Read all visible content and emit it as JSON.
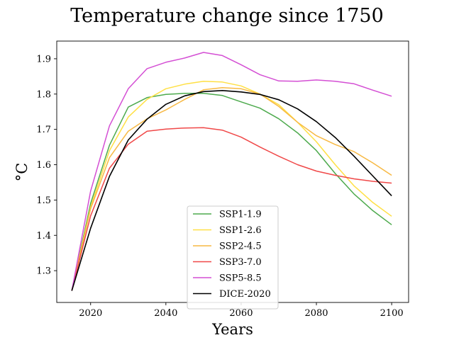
{
  "chart_data": {
    "type": "line",
    "title": "Temperature change since 1750",
    "xlabel": "Years",
    "ylabel": "°C",
    "xlim": [
      2011,
      2104.5
    ],
    "ylim": [
      1.21,
      1.95
    ],
    "x_ticks": [
      2020,
      2040,
      2060,
      2080,
      2100
    ],
    "y_ticks": [
      1.3,
      1.4,
      1.5,
      1.6,
      1.7,
      1.8,
      1.9
    ],
    "grid": false,
    "legend_position": "lower-center",
    "x": [
      2015,
      2020,
      2025,
      2030,
      2035,
      2040,
      2045,
      2050,
      2055,
      2060,
      2065,
      2070,
      2075,
      2080,
      2085,
      2090,
      2095,
      2100
    ],
    "series": [
      {
        "name": "SSP1-1.9",
        "color": "#4daa4d",
        "values": [
          1.243,
          1.49,
          1.655,
          1.763,
          1.79,
          1.799,
          1.802,
          1.802,
          1.796,
          1.778,
          1.76,
          1.73,
          1.69,
          1.64,
          1.575,
          1.517,
          1.47,
          1.43
        ]
      },
      {
        "name": "SSP1-2.6",
        "color": "#ffe045",
        "values": [
          1.243,
          1.48,
          1.64,
          1.735,
          1.785,
          1.815,
          1.828,
          1.836,
          1.834,
          1.823,
          1.8,
          1.77,
          1.72,
          1.665,
          1.6,
          1.54,
          1.493,
          1.454
        ]
      },
      {
        "name": "SSP2-4.5",
        "color": "#f7b944",
        "values": [
          1.243,
          1.475,
          1.62,
          1.695,
          1.73,
          1.755,
          1.785,
          1.812,
          1.818,
          1.815,
          1.8,
          1.765,
          1.72,
          1.682,
          1.657,
          1.637,
          1.605,
          1.57
        ]
      },
      {
        "name": "SSP3-7.0",
        "color": "#f04848",
        "values": [
          1.243,
          1.455,
          1.59,
          1.658,
          1.695,
          1.701,
          1.704,
          1.705,
          1.698,
          1.678,
          1.65,
          1.624,
          1.6,
          1.582,
          1.57,
          1.56,
          1.553,
          1.548
        ]
      },
      {
        "name": "SSP5-8.5",
        "color": "#d44fd4",
        "values": [
          1.243,
          1.525,
          1.71,
          1.815,
          1.872,
          1.89,
          1.902,
          1.918,
          1.909,
          1.883,
          1.855,
          1.837,
          1.836,
          1.84,
          1.836,
          1.829,
          1.811,
          1.794
        ]
      },
      {
        "name": "DICE-2020",
        "color": "#000000",
        "values": [
          1.243,
          1.42,
          1.567,
          1.67,
          1.729,
          1.771,
          1.795,
          1.807,
          1.81,
          1.806,
          1.799,
          1.784,
          1.758,
          1.722,
          1.677,
          1.624,
          1.568,
          1.512
        ]
      }
    ]
  }
}
